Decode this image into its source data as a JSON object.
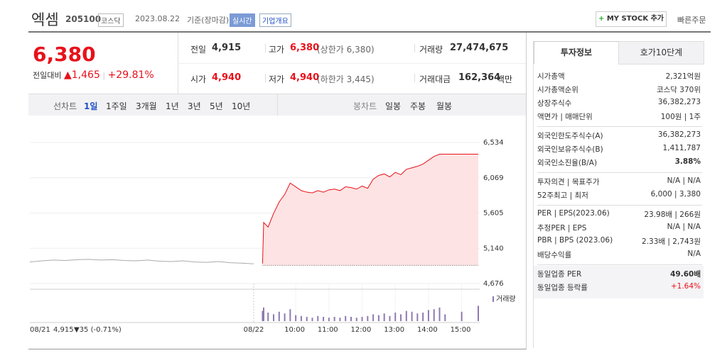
{
  "header": {
    "name": "엑셈",
    "code": "205100",
    "market": "코스닥",
    "date": "2023.08.22",
    "date_note": "기준(장마감)",
    "realtime": "실시간",
    "overview": "기업개요",
    "mystock": "MY STOCK 추가",
    "quick_order": "빠른주문"
  },
  "price": {
    "current": "6,380",
    "change_label": "전일대비",
    "change": "1,465",
    "rate": "+29.81%"
  },
  "stats": [
    [
      "전일",
      "4,915",
      ""
    ],
    [
      "고가",
      "6,380",
      "(상한가 6,380)"
    ],
    [
      "거래량",
      "27,474,675",
      ""
    ],
    [
      "시가",
      "4,940",
      ""
    ],
    [
      "저가",
      "4,940",
      "(하한가 3,445)"
    ],
    [
      "거래대금",
      "162,364",
      "백만"
    ]
  ],
  "tabs": {
    "line_label": "선차트",
    "line_periods": [
      "1일",
      "1주일",
      "3개월",
      "1년",
      "3년",
      "5년",
      "10년"
    ],
    "candle_label": "봉차트",
    "candle_periods": [
      "일봉",
      "주봉",
      "월봉"
    ]
  },
  "chart": {
    "type": "line",
    "prev_day": "08/21",
    "prev_close": "4,915",
    "prev_change": "▼35 (-0.71%)",
    "volume_label": "거래량",
    "ylim": [
      4676,
      6534
    ],
    "yticks": [
      {
        "value": 4676,
        "label": "4,676"
      },
      {
        "value": 5140,
        "label": "5,140"
      },
      {
        "value": 5605,
        "label": "5,605"
      },
      {
        "value": 6069,
        "label": "6,069"
      },
      {
        "value": 6534,
        "label": "6,534"
      }
    ],
    "xlim": [
      -16,
      390
    ],
    "xticks": [
      {
        "value": -16,
        "label": "08/22"
      },
      {
        "value": 60,
        "label": "10:00"
      },
      {
        "value": 120,
        "label": "11:00"
      },
      {
        "value": 180,
        "label": "12:00"
      },
      {
        "value": 240,
        "label": "13:00"
      },
      {
        "value": 300,
        "label": "14:00"
      },
      {
        "value": 360,
        "label": "15:00"
      }
    ],
    "baseline": 4915,
    "color": "#e8111a",
    "prev_values": [
      4960,
      4975,
      4985,
      4980,
      4990,
      4995,
      4985,
      4990,
      4980,
      4975,
      4985,
      4970,
      4965,
      4975,
      4960,
      4955,
      4965,
      4950,
      4945,
      4935
    ],
    "x": [
      0,
      2,
      10,
      20,
      30,
      40,
      50,
      60,
      70,
      80,
      90,
      100,
      110,
      120,
      130,
      140,
      150,
      160,
      170,
      180,
      190,
      200,
      210,
      220,
      230,
      240,
      250,
      260,
      270,
      280,
      290,
      300,
      310,
      320,
      330,
      360,
      390
    ],
    "values": [
      4940,
      5480,
      5420,
      5600,
      5750,
      5850,
      6000,
      5950,
      5900,
      5880,
      5870,
      5900,
      5880,
      5910,
      5920,
      5900,
      5950,
      5940,
      5920,
      5960,
      5930,
      6050,
      6100,
      6120,
      6080,
      6140,
      6110,
      6180,
      6200,
      6220,
      6250,
      6300,
      6350,
      6380,
      6380,
      6380,
      6380
    ],
    "volume_ylim": [
      0,
      100
    ],
    "volume": [
      60,
      80,
      50,
      40,
      55,
      45,
      70,
      35,
      30,
      25,
      20,
      30,
      25,
      20,
      25,
      20,
      30,
      25,
      20,
      25,
      30,
      40,
      35,
      45,
      30,
      50,
      40,
      60,
      55,
      45,
      50,
      65,
      70,
      80,
      40,
      55,
      90
    ]
  },
  "side": {
    "tabs": [
      "투자정보",
      "호가10단계"
    ],
    "sections": [
      [
        [
          "시가총액",
          "2,321억원"
        ],
        [
          "시가총액순위",
          "코스닥 370위"
        ],
        [
          "상장주식수",
          "36,382,273"
        ],
        [
          "액면가 | 매매단위",
          "100원 | 1주"
        ]
      ],
      [
        [
          "외국인한도주식수(A)",
          "36,382,273"
        ],
        [
          "외국인보유주식수(B)",
          "1,411,787"
        ],
        [
          "외국인소진율(B/A)",
          "3.88%"
        ]
      ],
      [
        [
          "투자의견 | 목표주가",
          "N/A | N/A"
        ],
        [
          "52주최고 | 최저",
          "6,000 | 3,380"
        ]
      ],
      [
        [
          "PER | EPS(2023.06)",
          "23.98배 | 266원"
        ],
        [
          "추정PER | EPS",
          "N/A | N/A"
        ],
        [
          "PBR | BPS (2023.06)",
          "2.33배 | 2,743원"
        ],
        [
          "배당수익률",
          "N/A"
        ]
      ],
      [
        [
          "동일업종 PER",
          "49.60배"
        ],
        [
          "동일업종 등락률",
          "+1.64%"
        ]
      ]
    ]
  }
}
